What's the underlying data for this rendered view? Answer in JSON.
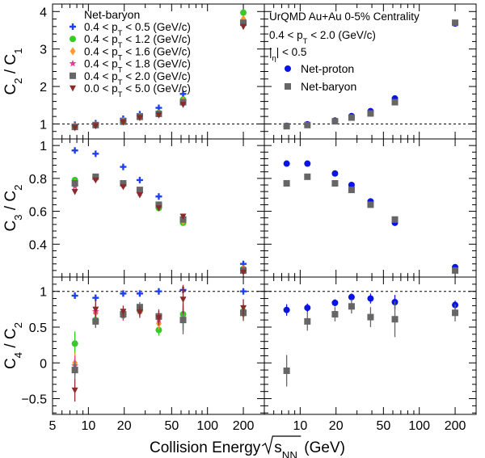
{
  "chart_data": {
    "type": "scatter",
    "x_scale": "log",
    "xlim": [
      5,
      300
    ],
    "x_tick_labels": [
      "5",
      "10",
      "20",
      "50",
      "100",
      "200"
    ],
    "xlabel": {
      "prefix": "Collision Energy ",
      "root": "s",
      "sub": "NN",
      "suffix": " (GeV)"
    },
    "energies": [
      7.7,
      11.5,
      19.6,
      27,
      39,
      62.4,
      200
    ],
    "left_legend": {
      "title": "Net-baryon",
      "series_labels": [
        [
          "0.4 < p",
          "T",
          " < 0.5 (GeV/c)"
        ],
        [
          "0.4 < p",
          "T",
          " < 1.2 (GeV/c)"
        ],
        [
          "0.4 < p",
          "T",
          " < 1.6 (GeV/c)"
        ],
        [
          "0.4 < p",
          "T",
          " < 1.8 (GeV/c)"
        ],
        [
          "0.4 < p",
          "T",
          " < 2.0 (GeV/c)"
        ],
        [
          "0.0 < p",
          "T",
          " < 5.0 (GeV/c)"
        ]
      ]
    },
    "right_legend": {
      "header_lines": [
        "UrQMD Au+Au 0-5% Centrality",
        [
          "0.4 < p",
          "T",
          " < 2.0 (GeV/c)"
        ],
        [
          "|",
          "η",
          "| < 0.5"
        ]
      ],
      "series_labels": [
        "Net-proton",
        "Net-baryon"
      ]
    },
    "left_series": [
      {
        "marker": "cross",
        "color": "#1f3ff0"
      },
      {
        "marker": "circle",
        "color": "#33cc22"
      },
      {
        "marker": "diamond",
        "color": "#ff9933"
      },
      {
        "marker": "star",
        "color": "#e83c8c"
      },
      {
        "marker": "square",
        "color": "#666666"
      },
      {
        "marker": "tri-down",
        "color": "#8b2a2a"
      }
    ],
    "right_series": [
      {
        "marker": "circle",
        "color": "#0a14e6"
      },
      {
        "marker": "square",
        "color": "#666666"
      }
    ],
    "panels": [
      {
        "row": 0,
        "ylabel": [
          "C",
          "2",
          " / C",
          "1"
        ],
        "ylim": [
          0.6,
          4.2
        ],
        "y_ticks": [
          1,
          2,
          3,
          4
        ],
        "ref_line": 1,
        "left": [
          [
            0.98,
            1.02,
            1.14,
            1.26,
            1.43,
            1.8,
            3.7
          ],
          [
            0.93,
            0.97,
            1.08,
            1.2,
            1.29,
            1.65,
            3.97
          ],
          [
            0.93,
            0.97,
            1.07,
            1.19,
            1.27,
            1.62,
            3.8
          ],
          [
            0.93,
            0.97,
            1.06,
            1.18,
            1.26,
            1.6,
            3.7
          ],
          [
            0.92,
            0.97,
            1.06,
            1.19,
            1.27,
            1.58,
            3.7
          ],
          [
            0.9,
            0.95,
            1.05,
            1.17,
            1.24,
            1.52,
            3.6
          ]
        ],
        "right": [
          [
            0.95,
            0.99,
            1.09,
            1.21,
            1.34,
            1.68,
            3.68
          ],
          [
            0.94,
            0.97,
            1.07,
            1.17,
            1.28,
            1.58,
            3.7
          ]
        ],
        "left_err": [],
        "right_err": []
      },
      {
        "row": 1,
        "ylabel": [
          "C",
          "3",
          " / C",
          "2"
        ],
        "ylim": [
          0.2,
          1.04
        ],
        "y_ticks": [
          0.4,
          0.6,
          0.8,
          1
        ],
        "y_tick_labels": [
          "0.4",
          "0.6",
          "0.8",
          "1"
        ],
        "ref_line": null,
        "left": [
          [
            0.97,
            0.95,
            0.87,
            0.79,
            0.69,
            0.56,
            0.28
          ],
          [
            0.79,
            0.81,
            0.77,
            0.72,
            0.62,
            0.53,
            0.25
          ],
          [
            0.77,
            0.8,
            0.76,
            0.71,
            0.63,
            0.54,
            0.25
          ],
          [
            0.75,
            0.8,
            0.76,
            0.71,
            0.64,
            0.56,
            0.25
          ],
          [
            0.77,
            0.81,
            0.77,
            0.73,
            0.64,
            0.55,
            0.24
          ],
          [
            0.72,
            0.79,
            0.75,
            0.7,
            0.62,
            0.57,
            0.23
          ]
        ],
        "right": [
          [
            0.89,
            0.89,
            0.83,
            0.76,
            0.66,
            0.53,
            0.26
          ],
          [
            0.77,
            0.81,
            0.77,
            0.73,
            0.64,
            0.55,
            0.24
          ]
        ],
        "left_err": [],
        "right_err": []
      },
      {
        "row": 2,
        "ylabel": [
          "C",
          "4",
          " / C",
          "2"
        ],
        "ylim": [
          -0.72,
          1.2
        ],
        "y_ticks": [
          -0.5,
          0,
          0.5,
          1
        ],
        "y_tick_labels": [
          "−0.5",
          "0",
          "0.5",
          "1"
        ],
        "ref_line": 1,
        "left": [
          [
            0.94,
            0.91,
            0.97,
            0.97,
            1.0,
            1.02,
            1.0
          ],
          [
            0.27,
            0.6,
            0.68,
            0.73,
            0.46,
            0.68,
            0.72
          ],
          [
            0.0,
            0.7,
            0.66,
            0.75,
            0.55,
            0.62,
            0.68
          ],
          [
            -0.04,
            0.72,
            0.66,
            0.72,
            0.6,
            0.6,
            0.71
          ],
          [
            -0.1,
            0.58,
            0.68,
            0.78,
            0.65,
            0.6,
            0.7
          ],
          [
            -0.38,
            0.75,
            0.72,
            0.71,
            0.63,
            0.89,
            0.77
          ]
        ],
        "right": [
          [
            0.74,
            0.77,
            0.84,
            0.92,
            0.9,
            0.85,
            0.81
          ],
          [
            -0.11,
            0.58,
            0.68,
            0.79,
            0.64,
            0.61,
            0.7
          ]
        ],
        "left_err": [
          [
            0.03,
            0.03,
            0.03,
            0.03,
            0.03,
            0.05,
            0.04
          ],
          [
            0.17,
            0.1,
            0.07,
            0.07,
            0.08,
            0.15,
            0.1
          ],
          [
            0.14,
            0.1,
            0.07,
            0.06,
            0.08,
            0.15,
            0.1
          ],
          [
            0.14,
            0.1,
            0.07,
            0.06,
            0.08,
            0.15,
            0.1
          ],
          [
            0.12,
            0.09,
            0.07,
            0.07,
            0.1,
            0.2,
            0.11
          ],
          [
            0.16,
            0.12,
            0.08,
            0.08,
            0.1,
            0.2,
            0.12
          ]
        ],
        "right_err": [
          [
            0.08,
            0.06,
            0.05,
            0.05,
            0.07,
            0.1,
            0.06
          ],
          [
            0.22,
            0.13,
            0.1,
            0.1,
            0.14,
            0.25,
            0.12
          ]
        ]
      }
    ],
    "grid": false,
    "legend_position": "top-left / top-right"
  }
}
